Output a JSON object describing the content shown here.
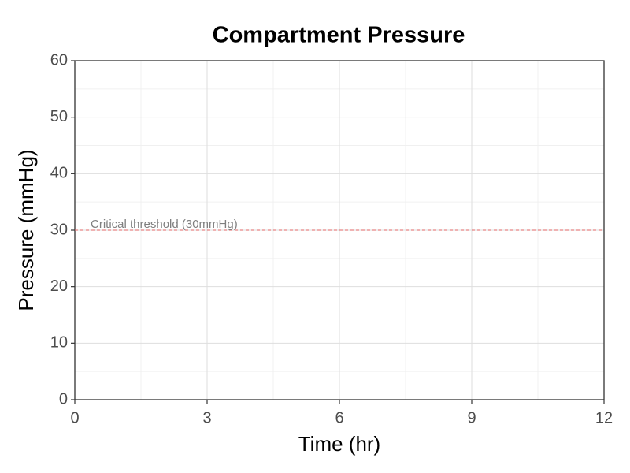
{
  "chart_data": {
    "type": "line",
    "title": "Compartment Pressure",
    "x_label": "Time (hr)",
    "y_label": "Pressure (mmHg)",
    "xlim": [
      0,
      12
    ],
    "xticks": [
      0,
      3,
      6,
      9,
      12
    ],
    "ylim": [
      0,
      60
    ],
    "yticks": [
      0,
      10,
      20,
      30,
      40,
      50,
      60
    ],
    "grid": true,
    "series": [],
    "reference_lines": [
      {
        "value": 30,
        "label": "Critical threshold (30mmHg)",
        "color": "#e06666"
      }
    ]
  }
}
